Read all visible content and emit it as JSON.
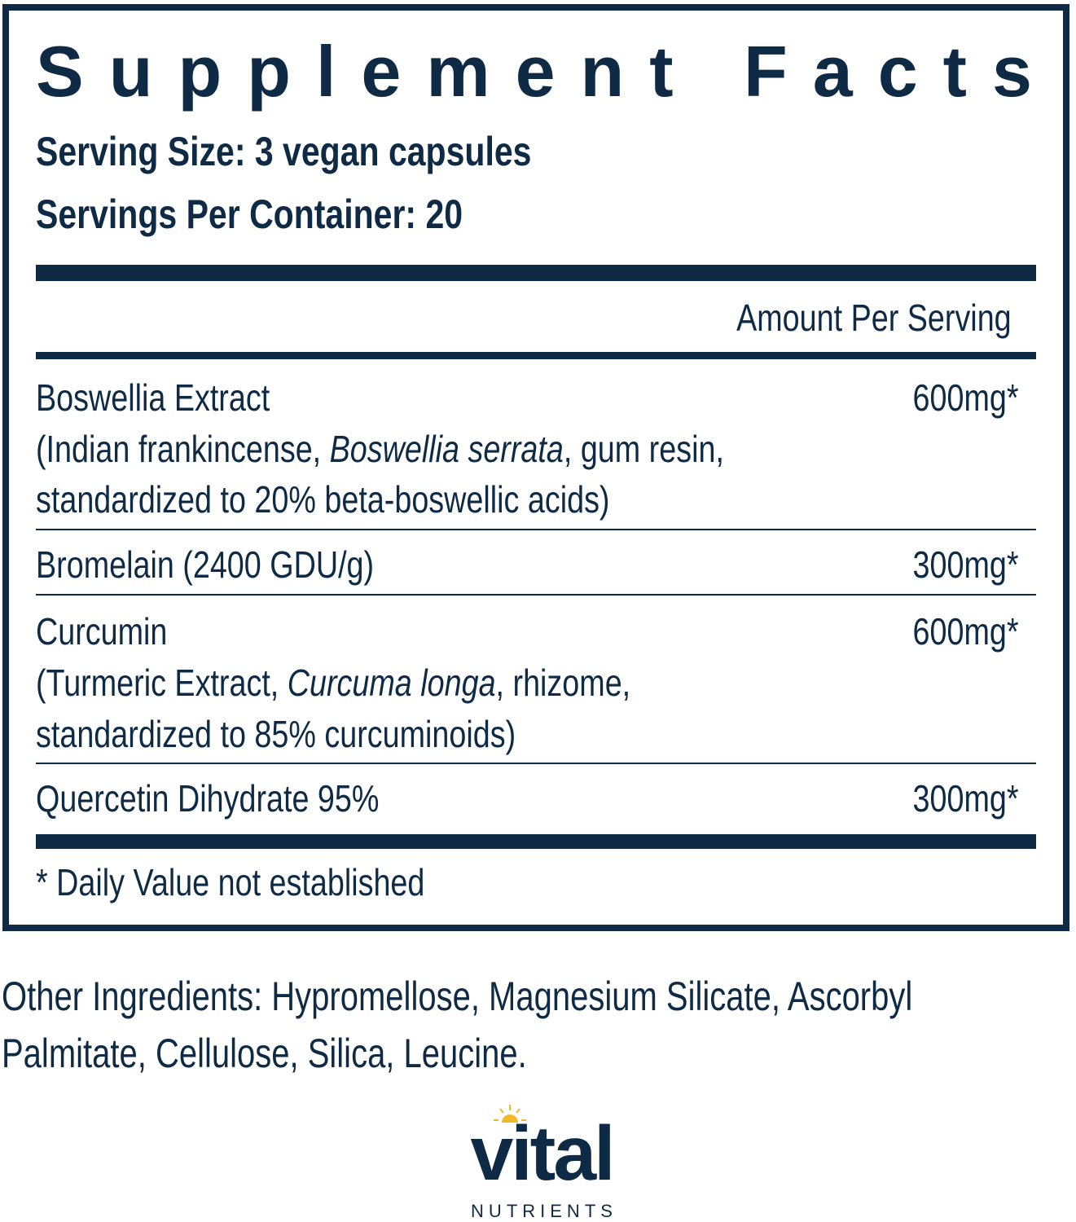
{
  "label": {
    "title": "Supplement Facts",
    "serving_size": "Serving Size: 3 vegan capsules",
    "servings_per_container": "Servings Per Container: 20",
    "amount_header": "Amount Per Serving",
    "ingredients": [
      {
        "name": "Boswellia Extract",
        "detail_pre": "(Indian frankincense, ",
        "detail_italic": "Boswellia serrata",
        "detail_post": ", gum resin,",
        "detail_line2": "standardized to 20% beta-boswellic acids)",
        "amount": "600mg*"
      },
      {
        "name": "Bromelain (2400 GDU/g)",
        "amount": "300mg*"
      },
      {
        "name": "Curcumin",
        "detail_pre": "(Turmeric Extract, ",
        "detail_italic": "Curcuma longa",
        "detail_post": ", rhizome,",
        "detail_line2": "standardized to 85% curcuminoids)",
        "amount": "600mg*"
      },
      {
        "name": "Quercetin Dihydrate 95%",
        "amount": "300mg*"
      }
    ],
    "footnote": "* Daily Value not established"
  },
  "other_ingredients": {
    "line1": "Other Ingredients: Hypromellose, Magnesium Silicate, Ascorbyl",
    "line2": "Palmitate, Cellulose, Silica, Leucine."
  },
  "brand": {
    "name": "vital",
    "sub": "NUTRIENTS",
    "colors": {
      "navy": "#0f2a44",
      "sun": "#f2b827"
    }
  }
}
